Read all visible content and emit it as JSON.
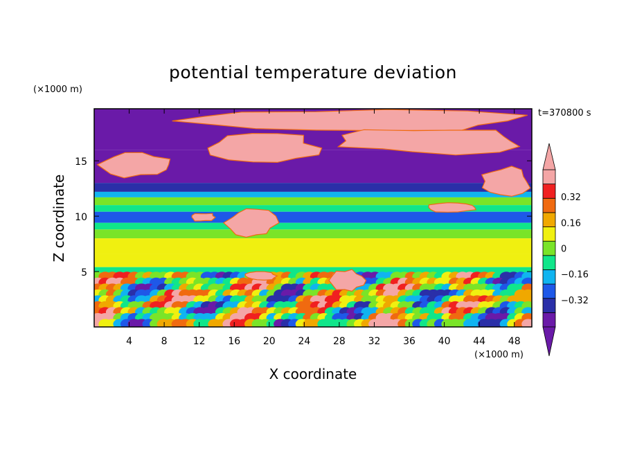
{
  "chart_data": {
    "type": "heatmap",
    "title": "potential temperature deviation",
    "xlabel": "X coordinate",
    "ylabel": "Z coordinate",
    "x_unit": "(×1000 m)",
    "y_unit": "(×1000 m)",
    "time_label": "t=370800 s",
    "xlim": [
      0,
      50
    ],
    "ylim": [
      0,
      19.7
    ],
    "x_ticks": [
      4,
      8,
      12,
      16,
      20,
      24,
      28,
      32,
      36,
      40,
      44,
      48
    ],
    "y_ticks": [
      5,
      10,
      15
    ],
    "colorbar": {
      "levels": [
        -0.4,
        -0.32,
        -0.24,
        -0.16,
        -0.08,
        0,
        0.08,
        0.16,
        0.24,
        0.32,
        0.4
      ],
      "labeled_ticks": [
        "0.32",
        "0.16",
        "0",
        "−0.16",
        "−0.32"
      ],
      "labeled_values": [
        0.32,
        0.16,
        0,
        -0.16,
        -0.32
      ],
      "colors": [
        "#6a1aa8",
        "#2a2fa8",
        "#1e58e8",
        "#10b4f0",
        "#10e68a",
        "#7ae428",
        "#f0f010",
        "#f0a800",
        "#f06a10",
        "#f02020",
        "#f4a6a6"
      ],
      "extend": "both"
    },
    "bands": [
      {
        "z": [
          16.0,
          19.7
        ],
        "value": -0.45
      },
      {
        "z": [
          13.0,
          16.0
        ],
        "value": -0.45
      },
      {
        "z": [
          12.2,
          13.0
        ],
        "value": -0.35
      },
      {
        "z": [
          11.7,
          12.2
        ],
        "value": -0.2
      },
      {
        "z": [
          11.0,
          11.7
        ],
        "value": -0.05
      },
      {
        "z": [
          10.4,
          11.0
        ],
        "value": -0.15
      },
      {
        "z": [
          9.4,
          10.4
        ],
        "value": -0.28
      },
      {
        "z": [
          8.8,
          9.4
        ],
        "value": -0.12
      },
      {
        "z": [
          8.0,
          8.8
        ],
        "value": -0.04
      },
      {
        "z": [
          6.6,
          8.0
        ],
        "value": 0.04
      },
      {
        "z": [
          5.4,
          6.6
        ],
        "value": 0.02
      },
      {
        "z": [
          4.8,
          5.4
        ],
        "value": -0.12
      },
      {
        "z": [
          0,
          4.8
        ],
        "value": -0.3
      }
    ],
    "warm_patches": [
      {
        "x": [
          8,
          50
        ],
        "z": [
          17.5,
          19.7
        ]
      },
      {
        "x": [
          0,
          9
        ],
        "z": [
          13.5,
          15.8
        ]
      },
      {
        "x": [
          13,
          26
        ],
        "z": [
          14.8,
          17.5
        ]
      },
      {
        "x": [
          27,
          50
        ],
        "z": [
          15.6,
          18.0
        ]
      },
      {
        "x": [
          44,
          50
        ],
        "z": [
          11.8,
          14.5
        ]
      },
      {
        "x": [
          38,
          44
        ],
        "z": [
          10.3,
          11.3
        ]
      },
      {
        "x": [
          11,
          14
        ],
        "z": [
          9.5,
          10.3
        ]
      },
      {
        "x": [
          15,
          21
        ],
        "z": [
          8.0,
          10.8
        ]
      },
      {
        "x": [
          27,
          31
        ],
        "z": [
          3.2,
          5.2
        ]
      },
      {
        "x": [
          17,
          21
        ],
        "z": [
          4.2,
          5.0
        ]
      }
    ],
    "turbulent_layer": {
      "z": [
        0,
        4.8
      ],
      "value_range": [
        -0.45,
        0.45
      ]
    }
  }
}
